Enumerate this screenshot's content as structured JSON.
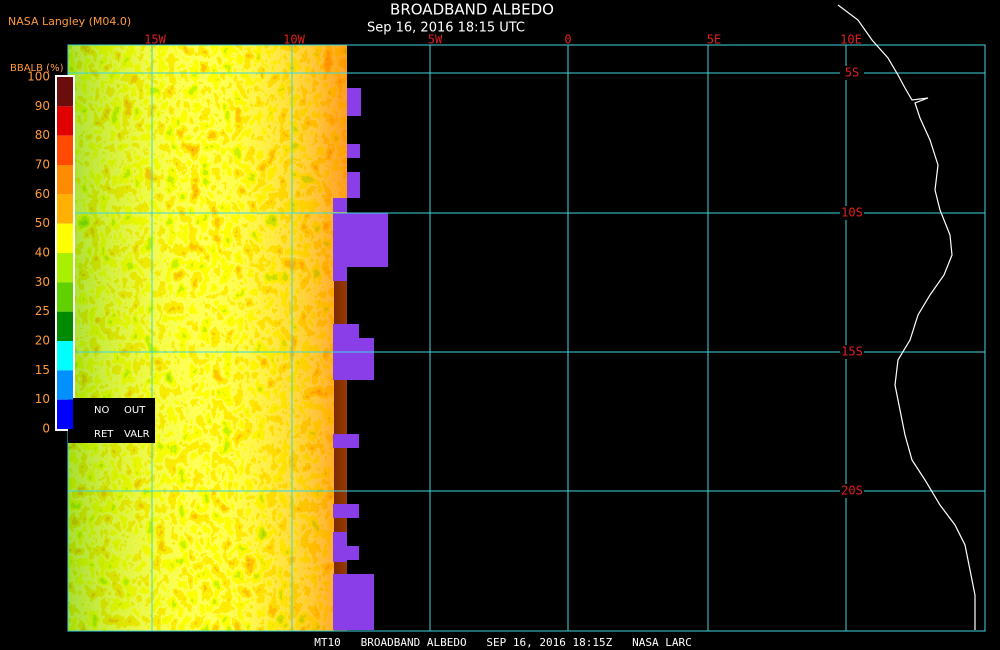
{
  "header": {
    "source": "NASA Langley (M04.0)",
    "title": "BROADBAND ALBEDO",
    "datetime": "Sep 16, 2016 18:15 UTC"
  },
  "map": {
    "longitude_labels": [
      "15W",
      "10W",
      "5W",
      "0",
      "5E",
      "10E"
    ],
    "latitude_labels": [
      "5S",
      "10S",
      "15S",
      "20S"
    ]
  },
  "legend": {
    "title": "BBALB (%)",
    "ticks": [
      100,
      90,
      80,
      70,
      60,
      50,
      40,
      30,
      25,
      20,
      15,
      10,
      0
    ],
    "colors": [
      "#6b0d0d",
      "#e00000",
      "#ff4a00",
      "#ff8c00",
      "#ffb000",
      "#ffff00",
      "#a8f000",
      "#60d000",
      "#008a00",
      "#00ffff",
      "#0090ff",
      "#0000ff",
      "#8a3ee8"
    ],
    "flags": [
      "NO",
      "OUT",
      "RET",
      "VALR"
    ]
  },
  "footer": "MT10   BROADBAND ALBEDO   SEP 16, 2016 18:15Z   NASA LARC"
}
